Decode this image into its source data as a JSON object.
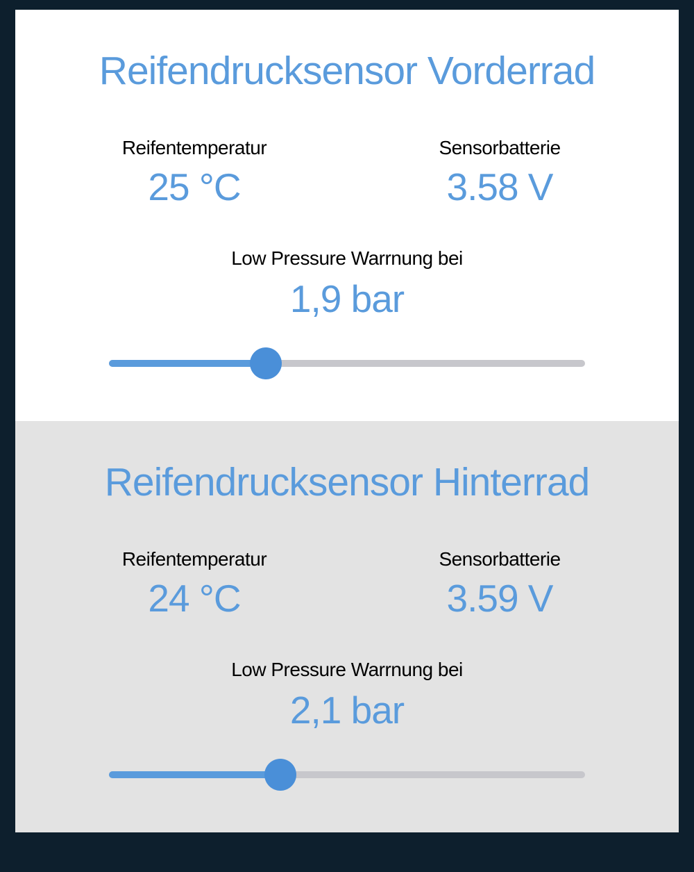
{
  "colors": {
    "accent": "#5a9bdc",
    "text_dark": "#000000",
    "bg_body": "#0d1f2d",
    "bg_section_front": "#ffffff",
    "bg_section_rear": "#e3e3e3",
    "slider_track": "#c7c7cc",
    "slider_fill": "#5a9bdc",
    "slider_thumb": "#4a8fd8"
  },
  "front": {
    "title": "Reifendrucksensor Vorderrad",
    "temperature": {
      "label": "Reifentemperatur",
      "value": "25 °C"
    },
    "battery": {
      "label": "Sensorbatterie",
      "value": "3.58 V"
    },
    "warning": {
      "label": "Low Pressure Warrnung bei",
      "value": "1,9 bar",
      "slider_percent": 33
    }
  },
  "rear": {
    "title": "Reifendrucksensor Hinterrad",
    "temperature": {
      "label": "Reifentemperatur",
      "value": "24 °C"
    },
    "battery": {
      "label": "Sensorbatterie",
      "value": "3.59 V"
    },
    "warning": {
      "label": "Low Pressure Warrnung bei",
      "value": "2,1 bar",
      "slider_percent": 36
    }
  }
}
